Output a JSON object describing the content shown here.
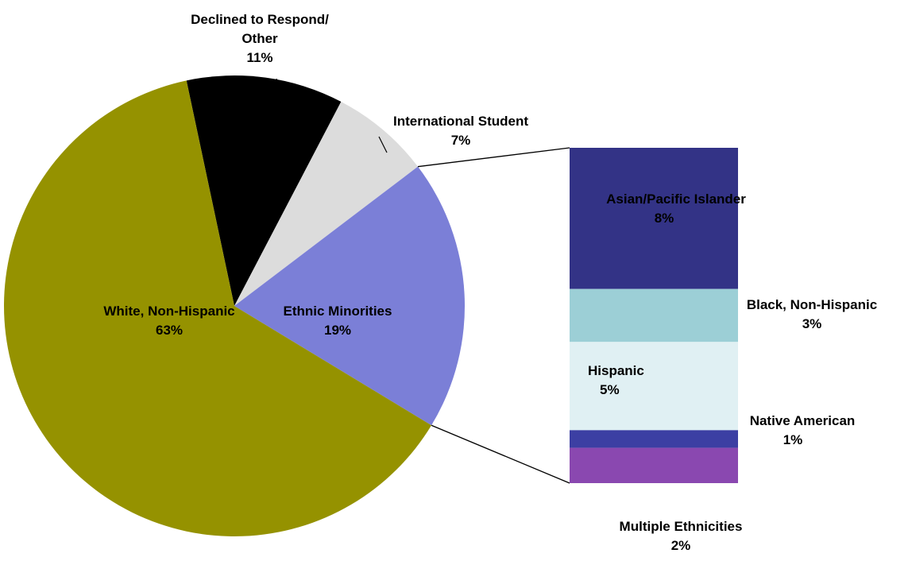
{
  "chart_data": {
    "type": "pie",
    "title": "",
    "pie": {
      "slices": [
        {
          "label_lines": [
            "Declined to Respond/",
            "Other"
          ],
          "value_label": "11%",
          "value": 11,
          "color": "#000000"
        },
        {
          "label_lines": [
            "International Student"
          ],
          "value_label": "7%",
          "value": 7,
          "color": "#dcdcdc"
        },
        {
          "label_lines": [
            "Ethnic Minorities"
          ],
          "value_label": "19%",
          "value": 19,
          "color": "#7b7fd7"
        },
        {
          "label_lines": [
            "White, Non-Hispanic"
          ],
          "value_label": "63%",
          "value": 63,
          "color": "#959200"
        }
      ]
    },
    "breakdown": {
      "parent": "Ethnic Minorities",
      "segments": [
        {
          "label_lines": [
            "Asian/Pacific Islander"
          ],
          "value_label": "8%",
          "value": 8,
          "color": "#333386"
        },
        {
          "label_lines": [
            "Black, Non-Hispanic"
          ],
          "value_label": "3%",
          "value": 3,
          "color": "#9ccfd6"
        },
        {
          "label_lines": [
            "Hispanic"
          ],
          "value_label": "5%",
          "value": 5,
          "color": "#e0f0f3"
        },
        {
          "label_lines": [
            "Native American"
          ],
          "value_label": "1%",
          "value": 1,
          "color": "#3c3fa3"
        },
        {
          "label_lines": [
            "Multiple Ethnicities"
          ],
          "value_label": "2%",
          "value": 2,
          "color": "#8a48b0"
        }
      ]
    }
  }
}
